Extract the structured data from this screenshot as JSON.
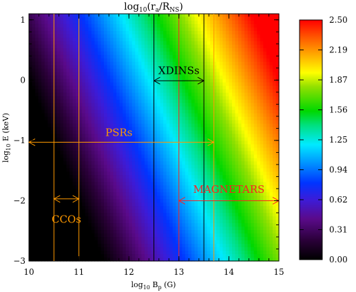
{
  "chart_data": {
    "type": "heatmap",
    "title": "log10(ra/RNS)",
    "title_parts": {
      "pre": "log",
      "sub": "10",
      "open": "(r",
      "sub2": "a",
      "mid": "/R",
      "sub3": "NS",
      "close": ")"
    },
    "xlabel_parts": {
      "pre": "log",
      "sub": "10",
      "mid": " B",
      "sub2": "p",
      "post": " (G)"
    },
    "ylabel_parts": {
      "pre": "log",
      "sub": "10",
      "post": " E (keV)"
    },
    "xlim": [
      10,
      15
    ],
    "ylim": [
      -3,
      1.1
    ],
    "x_ticks": [
      10,
      11,
      12,
      13,
      14,
      15
    ],
    "y_ticks": [
      -3,
      -2,
      -1,
      0,
      1
    ],
    "colorbar": {
      "range": [
        0.0,
        2.5
      ],
      "tick_labels": [
        "0.00",
        "0.31",
        "0.62",
        "0.94",
        "1.25",
        "1.56",
        "1.87",
        "2.19",
        "2.50"
      ]
    },
    "field_model": {
      "base": 1.25,
      "d_log_B": 0.5,
      "d_log_E": 0.25
    },
    "annotations": [
      {
        "label": "XDINSs",
        "color": "#000000",
        "x_range": [
          12.5,
          13.5
        ],
        "arrow_y": -0.01,
        "label_x": 13.0,
        "label_y": 0.17
      },
      {
        "label": "PSRs",
        "color": "#ff9900",
        "x_range": [
          10.0,
          13.7
        ],
        "arrow_y": -1.03,
        "label_x": 11.8,
        "label_y": -0.86
      },
      {
        "label": "MAGNETARS",
        "color": "#ff2020",
        "x_range": [
          13.0,
          15.0
        ],
        "arrow_y": -2.0,
        "label_x": 14.0,
        "label_y": -1.8
      },
      {
        "label": "CCOs",
        "color": "#ff9900",
        "x_range": [
          10.5,
          11.0
        ],
        "arrow_y": -1.97,
        "label_x": 10.75,
        "label_y": -2.3
      }
    ],
    "vertical_lines": [
      {
        "x": 10.5,
        "color": "#ff9900"
      },
      {
        "x": 11.0,
        "color": "#ff9900"
      },
      {
        "x": 12.5,
        "color": "#000000"
      },
      {
        "x": 13.0,
        "color": "#ff2020"
      },
      {
        "x": 13.5,
        "color": "#000000"
      },
      {
        "x": 13.7,
        "color": "#ff9900"
      }
    ]
  }
}
